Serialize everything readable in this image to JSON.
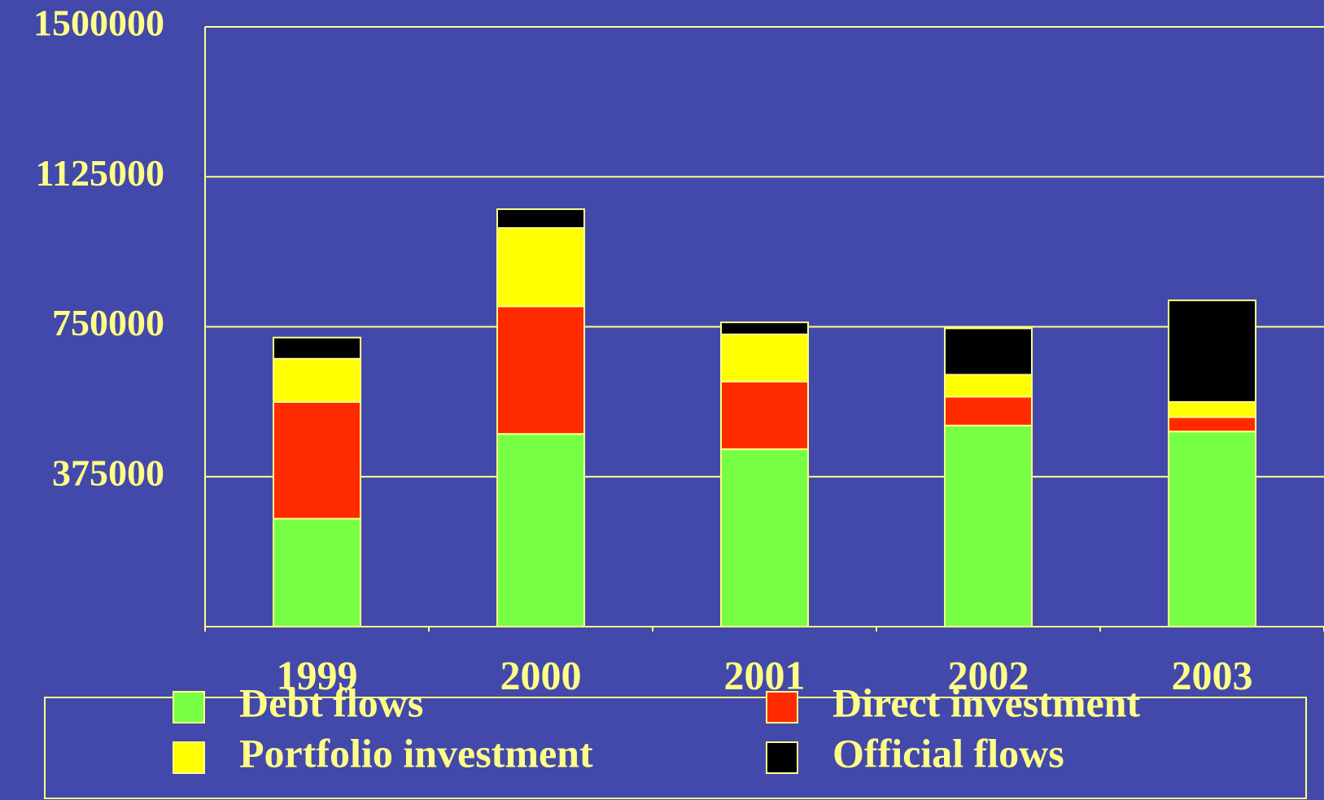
{
  "chart_data": {
    "type": "stacked_bar",
    "categories": [
      "1999",
      "2000",
      "2001",
      "2002",
      "2003"
    ],
    "series": [
      {
        "name": "Debt flows",
        "color": "#77ff44",
        "values": [
          270000,
          482000,
          444000,
          503000,
          488000
        ]
      },
      {
        "name": "Direct investment",
        "color": "#ff2a00",
        "values": [
          292000,
          319000,
          169000,
          72000,
          36000
        ]
      },
      {
        "name": "Portfolio investment",
        "color": "#ffff00",
        "values": [
          108000,
          196000,
          118000,
          55000,
          38000
        ]
      },
      {
        "name": "Official flows",
        "color": "#000000",
        "values": [
          53000,
          47000,
          30000,
          116000,
          254000
        ]
      }
    ],
    "ylim": [
      0,
      1500000
    ],
    "yticks": [
      375000,
      750000,
      1125000,
      1500000
    ],
    "grid": true,
    "legend": "bottom"
  }
}
